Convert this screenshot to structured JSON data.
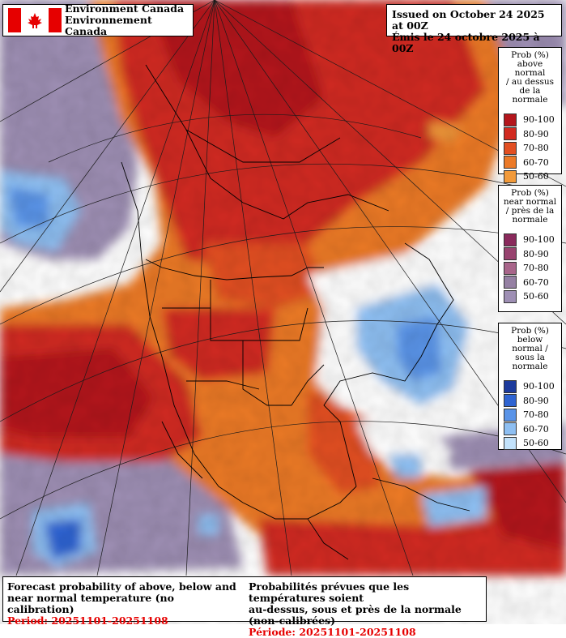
{
  "header": {
    "agency_en": "Environment Canada",
    "agency_fr": "Environnement Canada"
  },
  "issued": {
    "en": "Issued on October 24 2025 at 00Z",
    "fr": "Émis le 24 octobre 2025 à 00Z"
  },
  "legends": {
    "above": {
      "title_lines": [
        "Prob (%)",
        "above normal",
        "/ au dessus",
        "de la normale"
      ],
      "items": [
        {
          "label": "90-100",
          "color": "#b4161c"
        },
        {
          "label": "80-90",
          "color": "#d12a20"
        },
        {
          "label": "70-80",
          "color": "#e24f22"
        },
        {
          "label": "60-70",
          "color": "#ec7a28"
        },
        {
          "label": "50-60",
          "color": "#f29a3a"
        }
      ]
    },
    "near": {
      "title_lines": [
        "Prob (%)",
        "near normal",
        "/ près de la",
        "normale"
      ],
      "items": [
        {
          "label": "90-100",
          "color": "#8a2a5c"
        },
        {
          "label": "80-90",
          "color": "#98436f"
        },
        {
          "label": "70-80",
          "color": "#a8658a"
        },
        {
          "label": "60-70",
          "color": "#9580a3"
        },
        {
          "label": "50-60",
          "color": "#9e8fb4"
        }
      ]
    },
    "below": {
      "title_lines": [
        "Prob (%)",
        "below normal /",
        "sous la normale"
      ],
      "items": [
        {
          "label": "90-100",
          "color": "#1c3a9c"
        },
        {
          "label": "80-90",
          "color": "#2f64d2"
        },
        {
          "label": "70-80",
          "color": "#5a94e8"
        },
        {
          "label": "60-70",
          "color": "#8ebff2"
        },
        {
          "label": "50-60",
          "color": "#c3e2fb"
        }
      ]
    }
  },
  "footer": {
    "en_line1": "Forecast probability of above, below and",
    "en_line2": "near normal temperature (no calibration)",
    "en_period": "Period: 20251101-20251108",
    "fr_line1": "Probabilités prévues que les températures soient",
    "fr_line2": "au-dessus, sous et près de la normale (non-calibrées)",
    "fr_period": "Période: 20251101-20251108"
  }
}
